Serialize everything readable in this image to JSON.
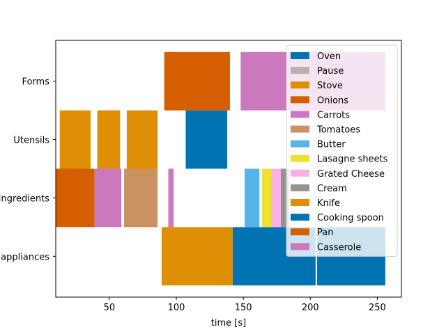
{
  "chart_data": {
    "type": "bar",
    "orientation": "horizontal",
    "stacked_timeline": true,
    "title": "",
    "xlabel": "time [s]",
    "ylabel": "",
    "xlim": [
      10,
      268
    ],
    "xticks": [
      50,
      100,
      150,
      200,
      250
    ],
    "categories": [
      "appliances",
      "Ingredients",
      "Utensils",
      "Forms"
    ],
    "legend": {
      "placement": "upper right"
    },
    "series": [
      {
        "name": "Oven",
        "color": "#0173b2",
        "segments": [
          {
            "category": "appliances",
            "start": 142,
            "end": 204
          },
          {
            "category": "appliances",
            "start": 205,
            "end": 256
          }
        ]
      },
      {
        "name": "Pause",
        "color": "#bab0ac",
        "segments": []
      },
      {
        "name": "Stove",
        "color": "#de8f05",
        "segments": [
          {
            "category": "appliances",
            "start": 89,
            "end": 142
          }
        ]
      },
      {
        "name": "Onions",
        "color": "#d55e00",
        "segments": [
          {
            "category": "Ingredients",
            "start": 10,
            "end": 39
          }
        ]
      },
      {
        "name": "Carrots",
        "color": "#cc78bc",
        "segments": [
          {
            "category": "Ingredients",
            "start": 39,
            "end": 59
          },
          {
            "category": "Ingredients",
            "start": 94,
            "end": 98
          }
        ]
      },
      {
        "name": "Tomatoes",
        "color": "#ca9161",
        "segments": [
          {
            "category": "Ingredients",
            "start": 61,
            "end": 86
          }
        ]
      },
      {
        "name": "Butter",
        "color": "#56b4e9",
        "segments": [
          {
            "category": "Ingredients",
            "start": 151,
            "end": 162
          }
        ]
      },
      {
        "name": "Lasagne sheets",
        "color": "#ece133",
        "segments": [
          {
            "category": "Ingredients",
            "start": 164,
            "end": 171
          }
        ]
      },
      {
        "name": "Grated Cheese",
        "color": "#fbafe4",
        "segments": [
          {
            "category": "Ingredients",
            "start": 171,
            "end": 178
          }
        ]
      },
      {
        "name": "Cream",
        "color": "#949494",
        "segments": [
          {
            "category": "Ingredients",
            "start": 178,
            "end": 184
          }
        ]
      },
      {
        "name": "Knife",
        "color": "#de8f05",
        "segments": [
          {
            "category": "Utensils",
            "start": 13,
            "end": 36
          },
          {
            "category": "Utensils",
            "start": 41,
            "end": 58
          },
          {
            "category": "Utensils",
            "start": 63,
            "end": 86
          }
        ]
      },
      {
        "name": "Cooking spoon",
        "color": "#0173b2",
        "segments": [
          {
            "category": "Utensils",
            "start": 107,
            "end": 138
          }
        ]
      },
      {
        "name": "Pan",
        "color": "#d55e00",
        "segments": [
          {
            "category": "Forms",
            "start": 91,
            "end": 140
          }
        ]
      },
      {
        "name": "Casserole",
        "color": "#cc78bc",
        "segments": [
          {
            "category": "Forms",
            "start": 148,
            "end": 256
          }
        ]
      }
    ]
  }
}
